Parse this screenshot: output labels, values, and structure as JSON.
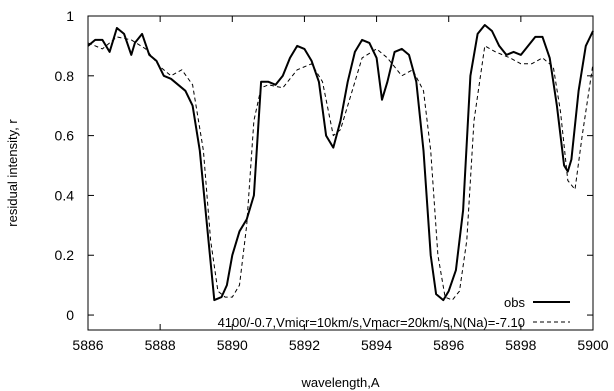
{
  "chart_data": {
    "type": "line",
    "xlabel": "wavelength,A",
    "ylabel": "residual intensity, r",
    "xlim": [
      5886,
      5900
    ],
    "ylim": [
      -0.05,
      1.0
    ],
    "xticks": [
      5886,
      5888,
      5890,
      5892,
      5894,
      5896,
      5898,
      5900
    ],
    "yticks": [
      0,
      0.2,
      0.4,
      0.6,
      0.8,
      1
    ],
    "xtick_labels": [
      "5886",
      "5888",
      "5890",
      "5892",
      "5894",
      "5896",
      "5898",
      "5900"
    ],
    "ytick_labels": [
      "0",
      "0.2",
      "0.4",
      "0.6",
      "0.8",
      "1"
    ],
    "grid": false,
    "legend_position": "bottom-right",
    "series": [
      {
        "name": "obs",
        "style": "solid",
        "color": "#000000",
        "x": [
          5886.0,
          5886.2,
          5886.4,
          5886.6,
          5886.8,
          5887.0,
          5887.2,
          5887.3,
          5887.5,
          5887.7,
          5887.9,
          5888.1,
          5888.3,
          5888.5,
          5888.7,
          5888.9,
          5889.1,
          5889.3,
          5889.5,
          5889.7,
          5889.85,
          5890.0,
          5890.2,
          5890.4,
          5890.6,
          5890.8,
          5891.0,
          5891.2,
          5891.4,
          5891.6,
          5891.8,
          5892.0,
          5892.2,
          5892.4,
          5892.6,
          5892.8,
          5893.0,
          5893.2,
          5893.4,
          5893.6,
          5893.8,
          5894.0,
          5894.15,
          5894.3,
          5894.5,
          5894.7,
          5894.9,
          5895.1,
          5895.3,
          5895.5,
          5895.65,
          5895.85,
          5896.0,
          5896.2,
          5896.4,
          5896.6,
          5896.8,
          5897.0,
          5897.2,
          5897.4,
          5897.6,
          5897.8,
          5898.0,
          5898.2,
          5898.4,
          5898.6,
          5898.8,
          5899.0,
          5899.2,
          5899.3,
          5899.4,
          5899.6,
          5899.8,
          5900.0
        ],
        "y": [
          0.9,
          0.92,
          0.92,
          0.88,
          0.96,
          0.94,
          0.87,
          0.91,
          0.94,
          0.87,
          0.85,
          0.8,
          0.79,
          0.77,
          0.75,
          0.7,
          0.55,
          0.3,
          0.05,
          0.06,
          0.1,
          0.2,
          0.28,
          0.32,
          0.4,
          0.78,
          0.78,
          0.77,
          0.8,
          0.86,
          0.9,
          0.89,
          0.85,
          0.78,
          0.6,
          0.56,
          0.65,
          0.78,
          0.88,
          0.92,
          0.91,
          0.86,
          0.72,
          0.78,
          0.88,
          0.89,
          0.87,
          0.78,
          0.55,
          0.2,
          0.07,
          0.05,
          0.08,
          0.15,
          0.35,
          0.8,
          0.94,
          0.97,
          0.95,
          0.9,
          0.87,
          0.88,
          0.87,
          0.9,
          0.93,
          0.93,
          0.86,
          0.7,
          0.5,
          0.48,
          0.52,
          0.75,
          0.9,
          0.95
        ]
      },
      {
        "name": "4100/-0.7,Vmicr=10km/s,Vmacr=20km/s,N(Na)=-7.10",
        "style": "dashed",
        "color": "#000000",
        "x": [
          5886.0,
          5886.4,
          5886.8,
          5887.2,
          5887.6,
          5888.0,
          5888.3,
          5888.6,
          5888.9,
          5889.2,
          5889.4,
          5889.6,
          5889.8,
          5890.0,
          5890.2,
          5890.4,
          5890.6,
          5890.8,
          5891.0,
          5891.4,
          5891.8,
          5892.2,
          5892.5,
          5892.8,
          5893.0,
          5893.3,
          5893.6,
          5894.0,
          5894.3,
          5894.7,
          5895.0,
          5895.3,
          5895.5,
          5895.7,
          5895.9,
          5896.1,
          5896.3,
          5896.5,
          5896.7,
          5897.0,
          5897.3,
          5897.7,
          5898.0,
          5898.3,
          5898.6,
          5898.9,
          5899.1,
          5899.3,
          5899.5,
          5899.7,
          5900.0
        ],
        "y": [
          0.91,
          0.89,
          0.93,
          0.92,
          0.89,
          0.83,
          0.8,
          0.82,
          0.77,
          0.55,
          0.25,
          0.08,
          0.06,
          0.06,
          0.1,
          0.3,
          0.65,
          0.76,
          0.77,
          0.76,
          0.82,
          0.84,
          0.78,
          0.6,
          0.62,
          0.74,
          0.86,
          0.89,
          0.86,
          0.8,
          0.82,
          0.75,
          0.55,
          0.2,
          0.06,
          0.05,
          0.08,
          0.25,
          0.65,
          0.9,
          0.88,
          0.86,
          0.84,
          0.84,
          0.86,
          0.83,
          0.68,
          0.45,
          0.42,
          0.6,
          0.84
        ]
      }
    ]
  }
}
